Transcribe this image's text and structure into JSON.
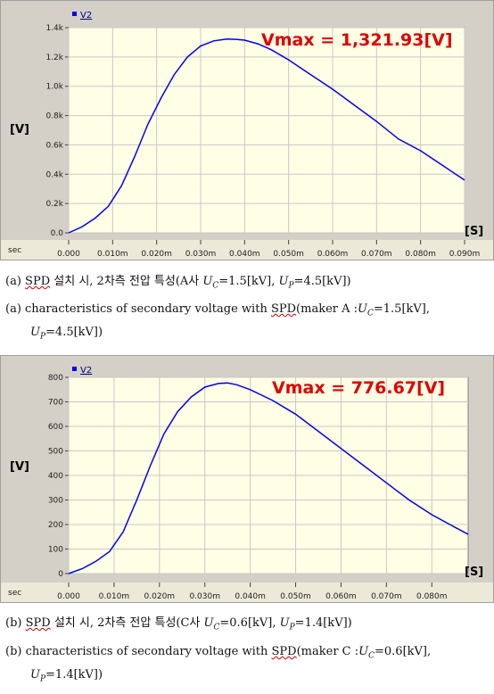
{
  "charts_meta": [
    {
      "caption_line1_prefix": "(a)",
      "caption_line1_spd": "SPD",
      "caption_line1_mid": "설치 시, 2차측 전압 특성(A사",
      "caption_line1_uc": "=1.5[kV],",
      "caption_line1_up": "=4.5[kV])",
      "caption_line2_prefix": "(a) characteristics of secondary voltage with",
      "caption_line2_spd": "SPD",
      "caption_line2_mid": "(maker A :",
      "caption_line2_uc": "=1.5[kV],",
      "caption_line3_up": "=4.5[kV])"
    },
    {
      "caption_line1_prefix": "(b)",
      "caption_line1_spd": "SPD",
      "caption_line1_mid": "설치 시, 2차측 전압 특성(C사",
      "caption_line1_uc": "=0.6[kV],",
      "caption_line1_up": "=1.4[kV])",
      "caption_line2_prefix": "(b) characteristics of secondary voltage with",
      "caption_line2_spd": "SPD",
      "caption_line2_mid": "(maker C :",
      "caption_line2_uc": "=0.6[kV],",
      "caption_line3_up": "=1.4[kV])"
    }
  ],
  "uc_symbol": "U",
  "uc_sub": "C",
  "up_symbol": "U",
  "up_sub": "P",
  "chart_data": [
    {
      "type": "line",
      "legend": "V2",
      "ylabel": "[V]",
      "xlabel": "[S]",
      "xaxis_name": "sec",
      "annotation": "Vmax = 1,321.93[V]",
      "ylim": [
        0,
        1400
      ],
      "xlim": [
        0,
        0.09
      ],
      "yticks": [
        0,
        200,
        400,
        600,
        800,
        1000,
        1200,
        1400
      ],
      "ytick_labels": [
        "0.0",
        "0.2k",
        "0.4k",
        "0.6k",
        "0.8k",
        "1.0k",
        "1.2k",
        "1.4k"
      ],
      "xticks": [
        0,
        0.01,
        0.02,
        0.03,
        0.04,
        0.05,
        0.06,
        0.07,
        0.08,
        0.09
      ],
      "xtick_labels": [
        "0.000",
        "0.010m",
        "0.020m",
        "0.030m",
        "0.040m",
        "0.050m",
        "0.060m",
        "0.070m",
        "0.080m",
        "0.090m"
      ],
      "colors": {
        "line": "#0000ee",
        "annotation": "#e00000"
      },
      "series": [
        {
          "name": "V2",
          "x": [
            0,
            0.003,
            0.006,
            0.009,
            0.012,
            0.015,
            0.018,
            0.021,
            0.024,
            0.027,
            0.03,
            0.033,
            0.036,
            0.038,
            0.04,
            0.043,
            0.046,
            0.05,
            0.055,
            0.06,
            0.065,
            0.07,
            0.075,
            0.08,
            0.085,
            0.09
          ],
          "y": [
            0,
            40,
            100,
            180,
            320,
            520,
            740,
            920,
            1080,
            1200,
            1275,
            1310,
            1322,
            1320,
            1315,
            1290,
            1250,
            1180,
            1080,
            980,
            870,
            760,
            640,
            560,
            460,
            360
          ]
        }
      ]
    },
    {
      "type": "line",
      "legend": "V2",
      "ylabel": "[V]",
      "xlabel": "[S]",
      "xaxis_name": "sec",
      "annotation": "Vmax = 776.67[V]",
      "ylim": [
        0,
        800
      ],
      "xlim": [
        0,
        0.088
      ],
      "yticks": [
        0,
        100,
        200,
        300,
        400,
        500,
        600,
        700,
        800
      ],
      "ytick_labels": [
        "0",
        "100",
        "200",
        "300",
        "400",
        "500",
        "600",
        "700",
        "800"
      ],
      "xticks": [
        0,
        0.01,
        0.02,
        0.03,
        0.04,
        0.05,
        0.06,
        0.07,
        0.08
      ],
      "xtick_labels": [
        "0.000",
        "0.010m",
        "0.020m",
        "0.030m",
        "0.040m",
        "0.050m",
        "0.060m",
        "0.070m",
        "0.080m"
      ],
      "colors": {
        "line": "#0000ee",
        "annotation": "#e00000"
      },
      "series": [
        {
          "name": "V2",
          "x": [
            0,
            0.003,
            0.006,
            0.009,
            0.012,
            0.015,
            0.018,
            0.021,
            0.024,
            0.027,
            0.03,
            0.033,
            0.035,
            0.037,
            0.04,
            0.045,
            0.05,
            0.055,
            0.06,
            0.065,
            0.07,
            0.075,
            0.08,
            0.085,
            0.088
          ],
          "y": [
            0,
            20,
            50,
            90,
            170,
            300,
            440,
            570,
            660,
            720,
            760,
            775,
            777,
            770,
            750,
            705,
            650,
            580,
            510,
            440,
            370,
            300,
            240,
            190,
            160
          ]
        }
      ]
    }
  ]
}
